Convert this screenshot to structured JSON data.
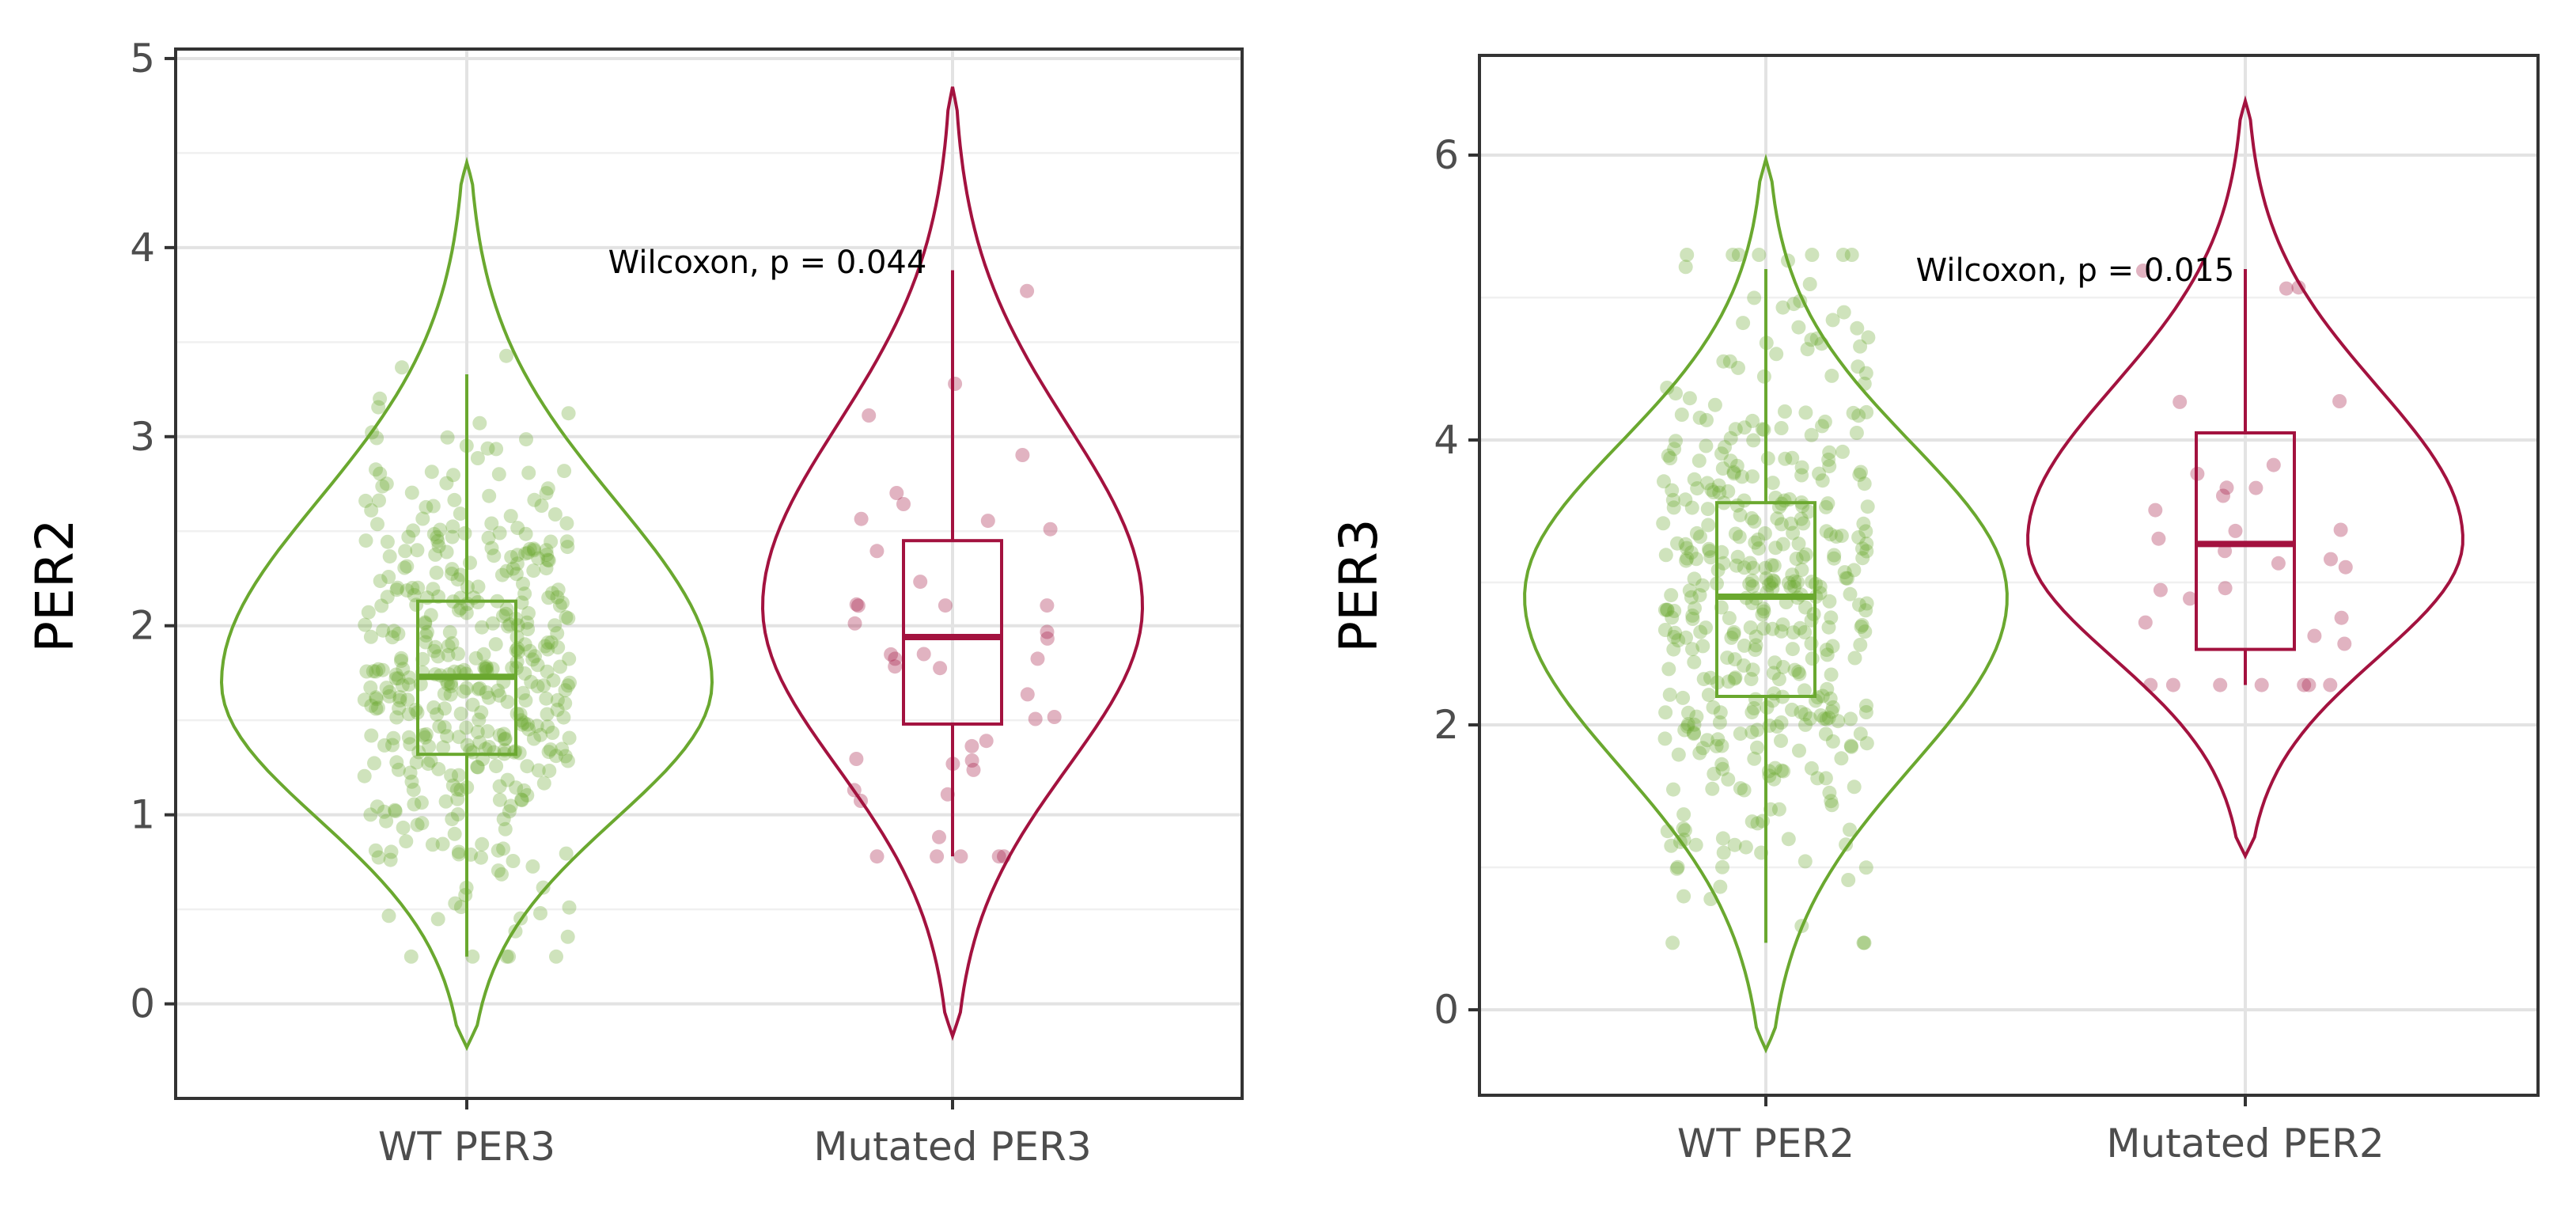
{
  "colors": {
    "wt": "#6aa82f",
    "mutated": "#a3123f",
    "grid_major": "#e3e3e3",
    "grid_minor": "#f0f0f0",
    "panel_border": "#333333"
  },
  "chart_data": [
    {
      "type": "violin",
      "ylabel": "PER2",
      "ylim": [
        -0.5,
        5.05
      ],
      "yticks": [
        0,
        1,
        2,
        3,
        4,
        5
      ],
      "grid": true,
      "annotation": "Wilcoxon, p = 0.044",
      "groups": [
        {
          "name": "WT PER3",
          "color_key": "wt",
          "n_points": 420,
          "box": {
            "whisker_low": 0.25,
            "q1": 1.32,
            "median": 1.73,
            "q3": 2.13,
            "whisker_high": 3.33
          },
          "violin_range": [
            -0.23,
            4.45
          ],
          "density_peak": 1.7
        },
        {
          "name": "Mutated PER3",
          "color_key": "mutated",
          "n_points": 42,
          "box": {
            "whisker_low": 0.78,
            "q1": 1.48,
            "median": 1.94,
            "q3": 2.45,
            "whisker_high": 3.88
          },
          "violin_range": [
            -0.17,
            4.85
          ],
          "density_peak": 2.1
        }
      ]
    },
    {
      "type": "violin",
      "ylabel": "PER3",
      "ylim": [
        -0.6,
        6.7
      ],
      "yticks": [
        0,
        2,
        4,
        6
      ],
      "grid": true,
      "annotation": "Wilcoxon, p = 0.015",
      "groups": [
        {
          "name": "WT PER2",
          "color_key": "wt",
          "n_points": 420,
          "box": {
            "whisker_low": 0.47,
            "q1": 2.2,
            "median": 2.9,
            "q3": 3.56,
            "whisker_high": 5.2
          },
          "violin_range": [
            -0.28,
            5.97
          ],
          "density_peak": 2.9
        },
        {
          "name": "Mutated PER2",
          "color_key": "mutated",
          "n_points": 32,
          "box": {
            "whisker_low": 2.28,
            "q1": 2.53,
            "median": 3.27,
            "q3": 4.05,
            "whisker_high": 5.2
          },
          "violin_range": [
            1.08,
            6.38
          ],
          "density_peak": 3.3
        }
      ]
    }
  ]
}
